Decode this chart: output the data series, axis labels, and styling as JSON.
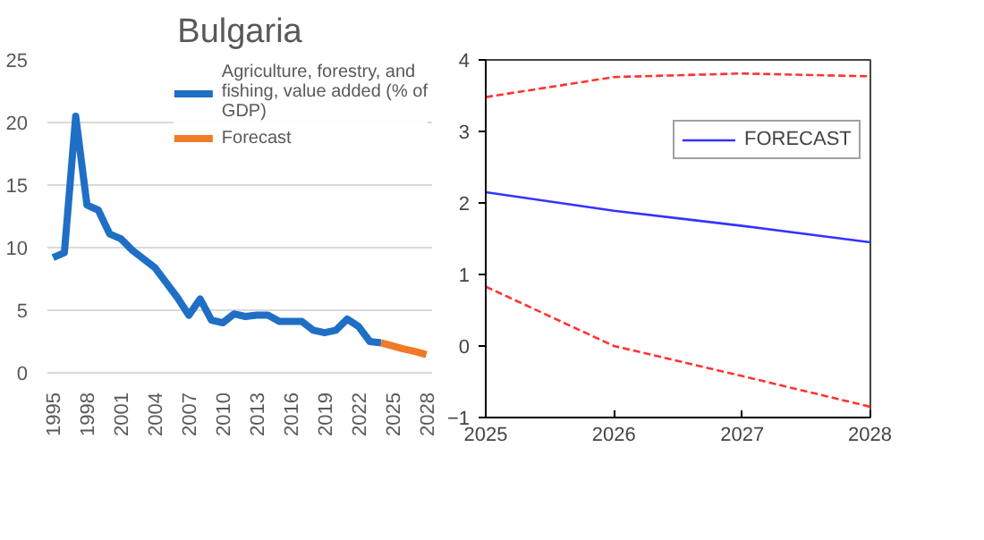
{
  "chart_data": [
    {
      "type": "line",
      "title": "Bulgaria",
      "xlim": [
        1994.5,
        2028.5
      ],
      "ylim": [
        0,
        25
      ],
      "yticks": [
        0,
        5,
        10,
        15,
        20,
        25
      ],
      "xticks": [
        1995,
        1998,
        2001,
        2004,
        2007,
        2010,
        2013,
        2016,
        2019,
        2022,
        2025,
        2028
      ],
      "grid": "y",
      "legend": "top right",
      "series": [
        {
          "name": "Agriculture, forestry, and fishing, value added (% of GDP)",
          "color": "#1f6fc6",
          "x": [
            1995,
            1996,
            1997,
            1998,
            1999,
            2000,
            2001,
            2002,
            2003,
            2004,
            2005,
            2006,
            2007,
            2008,
            2009,
            2010,
            2011,
            2012,
            2013,
            2014,
            2015,
            2016,
            2017,
            2018,
            2019,
            2020,
            2021,
            2022,
            2023,
            2024
          ],
          "values": [
            9.2,
            9.6,
            20.5,
            13.4,
            13.0,
            11.1,
            10.7,
            9.8,
            9.1,
            8.4,
            7.2,
            6.0,
            4.6,
            5.9,
            4.2,
            4.0,
            4.7,
            4.5,
            4.6,
            4.6,
            4.1,
            4.1,
            4.1,
            3.4,
            3.2,
            3.4,
            4.3,
            3.7,
            2.5,
            2.4
          ]
        },
        {
          "name": "Forecast",
          "color": "#f07a26",
          "x": [
            2024,
            2025,
            2026,
            2027,
            2028
          ],
          "values": [
            2.4,
            2.15,
            1.9,
            1.7,
            1.45
          ]
        }
      ]
    },
    {
      "type": "line",
      "xlim": [
        2025,
        2028
      ],
      "ylim": [
        -1,
        4
      ],
      "xticks": [
        2025,
        2026,
        2027,
        2028
      ],
      "yticks": [
        -1,
        0,
        1,
        2,
        3,
        4
      ],
      "grid": false,
      "legend": "right",
      "series": [
        {
          "name": "FORECAST",
          "color": "#3333ff",
          "x": [
            2025,
            2026,
            2027,
            2028
          ],
          "values": [
            2.15,
            1.89,
            1.68,
            1.45
          ]
        },
        {
          "color": "#ff3333",
          "line_style": "dashed",
          "x": [
            2025,
            2026,
            2027,
            2028
          ],
          "values": [
            3.48,
            3.76,
            3.81,
            3.77
          ]
        },
        {
          "color": "#ff3333",
          "line_style": "dashed",
          "x": [
            2025,
            2026,
            2027,
            2028
          ],
          "values": [
            0.83,
            0.0,
            -0.42,
            -0.85
          ]
        }
      ]
    }
  ]
}
